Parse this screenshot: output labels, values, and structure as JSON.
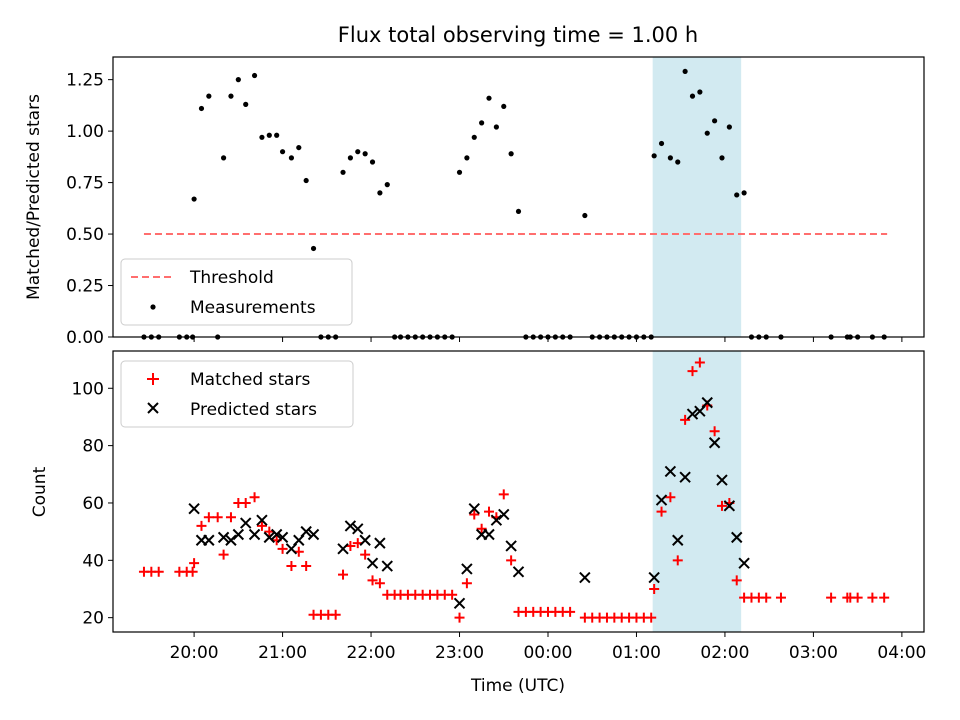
{
  "figure": {
    "title": "Flux total observing time = 1.00 h",
    "xlabel": "Time (UTC)",
    "highlight_color": "#add8e6"
  },
  "chart_data": [
    {
      "id": "ratio",
      "type": "scatter",
      "ylabel": "Matched/Predicted stars",
      "ylim": [
        0.0,
        1.36
      ],
      "yticks": [
        0.0,
        0.25,
        0.5,
        0.75,
        1.0,
        1.25
      ],
      "ytick_labels": [
        "0.00",
        "0.25",
        "0.50",
        "0.75",
        "1.00",
        "1.25"
      ],
      "xlim": [
        "19:05",
        "04:15"
      ],
      "xticks": [
        "20:00",
        "21:00",
        "22:00",
        "23:00",
        "00:00",
        "01:00",
        "02:00",
        "03:00",
        "04:00"
      ],
      "highlight_span": [
        "01:11",
        "02:11"
      ],
      "legend": {
        "placement": "lower-left",
        "entries": [
          "Threshold",
          "Measurements"
        ]
      },
      "threshold": {
        "name": "Threshold",
        "value": 0.5,
        "x_range": [
          "19:26",
          "03:50"
        ],
        "color": "#ff6e6e",
        "style": "dashed"
      },
      "series": [
        {
          "name": "Measurements",
          "color": "#000000",
          "marker": "dot",
          "points": [
            [
              "19:26",
              0
            ],
            [
              "19:31",
              0
            ],
            [
              "19:36",
              0
            ],
            [
              "19:50",
              0
            ],
            [
              "19:55",
              0
            ],
            [
              "19:59",
              0
            ],
            [
              "20:00",
              0.67
            ],
            [
              "20:05",
              1.11
            ],
            [
              "20:10",
              1.17
            ],
            [
              "20:16",
              0
            ],
            [
              "20:20",
              0.87
            ],
            [
              "20:25",
              1.17
            ],
            [
              "20:30",
              1.25
            ],
            [
              "20:35",
              1.13
            ],
            [
              "20:41",
              1.27
            ],
            [
              "20:46",
              0.97
            ],
            [
              "20:51",
              0.98
            ],
            [
              "20:56",
              0.98
            ],
            [
              "21:00",
              0.9
            ],
            [
              "21:06",
              0.87
            ],
            [
              "21:11",
              0.92
            ],
            [
              "21:16",
              0.76
            ],
            [
              "21:21",
              0.43
            ],
            [
              "21:26",
              0
            ],
            [
              "21:31",
              0
            ],
            [
              "21:36",
              0
            ],
            [
              "21:41",
              0.8
            ],
            [
              "21:46",
              0.87
            ],
            [
              "21:51",
              0.9
            ],
            [
              "21:56",
              0.89
            ],
            [
              "22:01",
              0.85
            ],
            [
              "22:06",
              0.7
            ],
            [
              "22:11",
              0.74
            ],
            [
              "22:16",
              0
            ],
            [
              "22:20",
              0
            ],
            [
              "22:25",
              0
            ],
            [
              "22:30",
              0
            ],
            [
              "22:35",
              0
            ],
            [
              "22:40",
              0
            ],
            [
              "22:45",
              0
            ],
            [
              "22:50",
              0
            ],
            [
              "22:55",
              0
            ],
            [
              "23:00",
              0.8
            ],
            [
              "23:05",
              0.87
            ],
            [
              "23:10",
              0.97
            ],
            [
              "23:15",
              1.04
            ],
            [
              "23:20",
              1.16
            ],
            [
              "23:25",
              1.02
            ],
            [
              "23:30",
              1.12
            ],
            [
              "23:35",
              0.89
            ],
            [
              "23:40",
              0.61
            ],
            [
              "23:45",
              0
            ],
            [
              "23:50",
              0
            ],
            [
              "23:55",
              0
            ],
            [
              "00:00",
              0
            ],
            [
              "00:05",
              0
            ],
            [
              "00:10",
              0
            ],
            [
              "00:15",
              0
            ],
            [
              "00:25",
              0.59
            ],
            [
              "00:30",
              0
            ],
            [
              "00:35",
              0
            ],
            [
              "00:40",
              0
            ],
            [
              "00:45",
              0
            ],
            [
              "00:50",
              0
            ],
            [
              "00:55",
              0
            ],
            [
              "01:00",
              0
            ],
            [
              "01:05",
              0
            ],
            [
              "01:10",
              0
            ],
            [
              "01:12",
              0.88
            ],
            [
              "01:17",
              0.94
            ],
            [
              "01:23",
              0.87
            ],
            [
              "01:28",
              0.85
            ],
            [
              "01:33",
              1.29
            ],
            [
              "01:38",
              1.17
            ],
            [
              "01:43",
              1.19
            ],
            [
              "01:48",
              0.99
            ],
            [
              "01:53",
              1.05
            ],
            [
              "01:58",
              0.87
            ],
            [
              "02:03",
              1.02
            ],
            [
              "02:08",
              0.69
            ],
            [
              "02:13",
              0.7
            ],
            [
              "02:18",
              0
            ],
            [
              "02:23",
              0
            ],
            [
              "02:28",
              0
            ],
            [
              "02:38",
              0
            ],
            [
              "03:12",
              0
            ],
            [
              "03:23",
              0
            ],
            [
              "03:25",
              0
            ],
            [
              "03:30",
              0
            ],
            [
              "03:40",
              0
            ],
            [
              "03:48",
              0
            ]
          ]
        }
      ]
    },
    {
      "id": "counts",
      "type": "scatter",
      "ylabel": "Count",
      "ylim": [
        15,
        113
      ],
      "yticks": [
        20,
        40,
        60,
        80,
        100
      ],
      "ytick_labels": [
        "20",
        "40",
        "60",
        "80",
        "100"
      ],
      "xlim": [
        "19:05",
        "04:15"
      ],
      "xticks": [
        "20:00",
        "21:00",
        "22:00",
        "23:00",
        "00:00",
        "01:00",
        "02:00",
        "03:00",
        "04:00"
      ],
      "xtick_labels": [
        "20:00",
        "21:00",
        "22:00",
        "23:00",
        "00:00",
        "01:00",
        "02:00",
        "03:00",
        "04:00"
      ],
      "highlight_span": [
        "01:11",
        "02:11"
      ],
      "legend": {
        "placement": "upper-left",
        "entries": [
          "Matched stars",
          "Predicted stars"
        ]
      },
      "series": [
        {
          "name": "Matched stars",
          "color": "#ff0000",
          "marker": "plus",
          "points": [
            [
              "19:26",
              36
            ],
            [
              "19:31",
              36
            ],
            [
              "19:36",
              36
            ],
            [
              "19:50",
              36
            ],
            [
              "19:55",
              36
            ],
            [
              "19:59",
              36
            ],
            [
              "20:00",
              39
            ],
            [
              "20:05",
              52
            ],
            [
              "20:10",
              55
            ],
            [
              "20:16",
              55
            ],
            [
              "20:20",
              42
            ],
            [
              "20:25",
              55
            ],
            [
              "20:30",
              60
            ],
            [
              "20:35",
              60
            ],
            [
              "20:41",
              62
            ],
            [
              "20:46",
              52
            ],
            [
              "20:51",
              50
            ],
            [
              "20:56",
              47
            ],
            [
              "21:00",
              44
            ],
            [
              "21:06",
              38
            ],
            [
              "21:11",
              43
            ],
            [
              "21:16",
              38
            ],
            [
              "21:21",
              21
            ],
            [
              "21:26",
              21
            ],
            [
              "21:31",
              21
            ],
            [
              "21:36",
              21
            ],
            [
              "21:41",
              35
            ],
            [
              "21:46",
              45
            ],
            [
              "21:51",
              46
            ],
            [
              "21:56",
              42
            ],
            [
              "22:01",
              33
            ],
            [
              "22:06",
              32
            ],
            [
              "22:11",
              28
            ],
            [
              "22:16",
              28
            ],
            [
              "22:20",
              28
            ],
            [
              "22:25",
              28
            ],
            [
              "22:30",
              28
            ],
            [
              "22:35",
              28
            ],
            [
              "22:40",
              28
            ],
            [
              "22:45",
              28
            ],
            [
              "22:50",
              28
            ],
            [
              "22:55",
              28
            ],
            [
              "23:00",
              20
            ],
            [
              "23:05",
              32
            ],
            [
              "23:10",
              56
            ],
            [
              "23:15",
              51
            ],
            [
              "23:20",
              57
            ],
            [
              "23:25",
              55
            ],
            [
              "23:30",
              63
            ],
            [
              "23:35",
              40
            ],
            [
              "23:40",
              22
            ],
            [
              "23:45",
              22
            ],
            [
              "23:50",
              22
            ],
            [
              "23:55",
              22
            ],
            [
              "00:00",
              22
            ],
            [
              "00:05",
              22
            ],
            [
              "00:10",
              22
            ],
            [
              "00:15",
              22
            ],
            [
              "00:25",
              20
            ],
            [
              "00:30",
              20
            ],
            [
              "00:35",
              20
            ],
            [
              "00:40",
              20
            ],
            [
              "00:45",
              20
            ],
            [
              "00:50",
              20
            ],
            [
              "00:55",
              20
            ],
            [
              "01:00",
              20
            ],
            [
              "01:05",
              20
            ],
            [
              "01:10",
              20
            ],
            [
              "01:12",
              30
            ],
            [
              "01:17",
              57
            ],
            [
              "01:23",
              62
            ],
            [
              "01:28",
              40
            ],
            [
              "01:33",
              89
            ],
            [
              "01:38",
              106
            ],
            [
              "01:43",
              109
            ],
            [
              "01:48",
              94
            ],
            [
              "01:53",
              85
            ],
            [
              "01:58",
              59
            ],
            [
              "02:03",
              60
            ],
            [
              "02:08",
              33
            ],
            [
              "02:13",
              27
            ],
            [
              "02:18",
              27
            ],
            [
              "02:23",
              27
            ],
            [
              "02:28",
              27
            ],
            [
              "02:38",
              27
            ],
            [
              "03:12",
              27
            ],
            [
              "03:23",
              27
            ],
            [
              "03:25",
              27
            ],
            [
              "03:30",
              27
            ],
            [
              "03:40",
              27
            ],
            [
              "03:48",
              27
            ]
          ]
        },
        {
          "name": "Predicted stars",
          "color": "#000000",
          "marker": "x",
          "points": [
            [
              "20:00",
              58
            ],
            [
              "20:05",
              47
            ],
            [
              "20:10",
              47
            ],
            [
              "20:20",
              48
            ],
            [
              "20:25",
              47
            ],
            [
              "20:30",
              49
            ],
            [
              "20:35",
              53
            ],
            [
              "20:41",
              49
            ],
            [
              "20:46",
              54
            ],
            [
              "20:51",
              48
            ],
            [
              "20:56",
              49
            ],
            [
              "21:00",
              48
            ],
            [
              "21:06",
              44
            ],
            [
              "21:11",
              47
            ],
            [
              "21:16",
              50
            ],
            [
              "21:21",
              49
            ],
            [
              "21:41",
              44
            ],
            [
              "21:46",
              52
            ],
            [
              "21:51",
              51
            ],
            [
              "21:56",
              47
            ],
            [
              "22:01",
              39
            ],
            [
              "22:06",
              46
            ],
            [
              "22:11",
              38
            ],
            [
              "23:00",
              25
            ],
            [
              "23:05",
              37
            ],
            [
              "23:10",
              58
            ],
            [
              "23:15",
              49
            ],
            [
              "23:20",
              49
            ],
            [
              "23:25",
              54
            ],
            [
              "23:30",
              56
            ],
            [
              "23:35",
              45
            ],
            [
              "23:40",
              36
            ],
            [
              "00:25",
              34
            ],
            [
              "01:12",
              34
            ],
            [
              "01:17",
              61
            ],
            [
              "01:23",
              71
            ],
            [
              "01:28",
              47
            ],
            [
              "01:33",
              69
            ],
            [
              "01:38",
              91
            ],
            [
              "01:43",
              92
            ],
            [
              "01:48",
              95
            ],
            [
              "01:53",
              81
            ],
            [
              "01:58",
              68
            ],
            [
              "02:03",
              59
            ],
            [
              "02:08",
              48
            ],
            [
              "02:13",
              39
            ]
          ]
        }
      ]
    }
  ]
}
